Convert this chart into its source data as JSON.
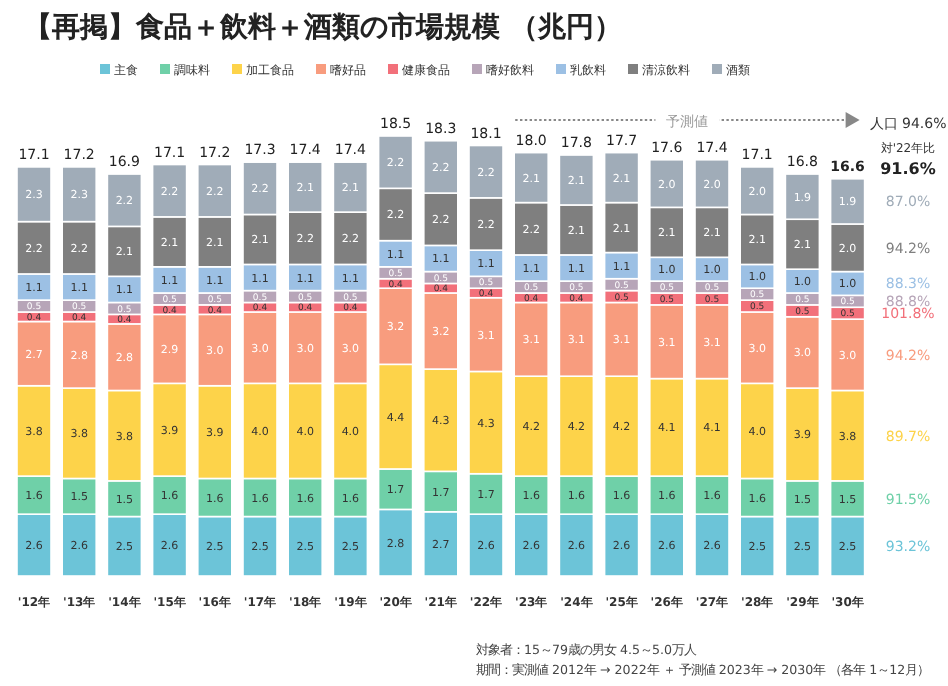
{
  "chart_data": {
    "type": "bar",
    "stacked": true,
    "title": "【再掲】食品＋飲料＋酒類の市場規模 （兆円）",
    "legend": "top",
    "categories": [
      "'12年",
      "'13年",
      "'14年",
      "'15年",
      "'16年",
      "'17年",
      "'18年",
      "'19年",
      "'20年",
      "'21年",
      "'22年",
      "'23年",
      "'24年",
      "'25年",
      "'26年",
      "'27年",
      "'28年",
      "'29年",
      "'30年"
    ],
    "series": [
      {
        "name": "主食",
        "color": "#6cc4d8",
        "values": [
          2.6,
          2.6,
          2.5,
          2.6,
          2.5,
          2.5,
          2.5,
          2.5,
          2.8,
          2.7,
          2.6,
          2.6,
          2.6,
          2.6,
          2.6,
          2.6,
          2.5,
          2.5,
          2.5
        ],
        "value_labels": [
          "2.6",
          "2.6",
          "2.5",
          "2.6",
          "2.5",
          "2.5",
          "2.5",
          "2.5",
          "2.8",
          "2.7",
          "2.6",
          "2.6",
          "2.6",
          "2.6",
          "2.6",
          "2.6",
          "2.5",
          "2.5",
          "2.5"
        ]
      },
      {
        "name": "調味料",
        "color": "#6fd0a8",
        "values": [
          1.6,
          1.5,
          1.5,
          1.6,
          1.6,
          1.6,
          1.6,
          1.6,
          1.7,
          1.7,
          1.7,
          1.6,
          1.6,
          1.6,
          1.6,
          1.6,
          1.6,
          1.5,
          1.5
        ],
        "value_labels": [
          "1.6",
          "1.5",
          "1.5",
          "1.6",
          "1.6",
          "1.6",
          "1.6",
          "1.6",
          "1.7",
          "1.7",
          "1.7",
          "1.6",
          "1.6",
          "1.6",
          "1.6",
          "1.6",
          "1.6",
          "1.5",
          "1.5"
        ]
      },
      {
        "name": "加工食品",
        "color": "#fdd34a",
        "values": [
          3.8,
          3.8,
          3.8,
          3.9,
          3.9,
          4.0,
          4.0,
          4.0,
          4.4,
          4.3,
          4.3,
          4.2,
          4.2,
          4.2,
          4.1,
          4.1,
          4.0,
          3.9,
          3.8
        ],
        "value_labels": [
          "3.8",
          "3.8",
          "3.8",
          "3.9",
          "3.9",
          "4.0",
          "4.0",
          "4.0",
          "4.4",
          "4.3",
          "4.3",
          "4.2",
          "4.2",
          "4.2",
          "4.1",
          "4.1",
          "4.0",
          "3.9",
          "3.8"
        ]
      },
      {
        "name": "嗜好品",
        "color": "#f89c7e",
        "values": [
          2.7,
          2.8,
          2.8,
          2.9,
          3.0,
          3.0,
          3.0,
          3.0,
          3.2,
          3.2,
          3.1,
          3.1,
          3.1,
          3.1,
          3.1,
          3.1,
          3.0,
          3.0,
          3.0
        ],
        "value_labels": [
          "2.7",
          "2.8",
          "2.8",
          "2.9",
          "3.0",
          "3.0",
          "3.0",
          "3.0",
          "3.2",
          "3.2",
          "3.1",
          "3.1",
          "3.1",
          "3.1",
          "3.1",
          "3.1",
          "3.0",
          "3.0",
          "3.0"
        ]
      },
      {
        "name": "健康食品",
        "color": "#f2707a",
        "values": [
          0.4,
          0.4,
          0.4,
          0.4,
          0.4,
          0.4,
          0.4,
          0.4,
          0.4,
          0.4,
          0.4,
          0.4,
          0.4,
          0.5,
          0.5,
          0.5,
          0.5,
          0.5,
          0.5
        ],
        "value_labels": [
          "0.4",
          "0.4",
          "0.4",
          "0.4",
          "0.4",
          "0.4",
          "0.4",
          "0.4",
          "0.4",
          "0.4",
          "0.4",
          "0.4",
          "0.4",
          "0.5",
          "0.5",
          "0.5",
          "0.5",
          "0.5",
          "0.5"
        ]
      },
      {
        "name": "嗜好飲料",
        "color": "#b7a5b8",
        "values": [
          0.5,
          0.5,
          0.5,
          0.5,
          0.5,
          0.5,
          0.5,
          0.5,
          0.5,
          0.5,
          0.5,
          0.5,
          0.5,
          0.5,
          0.5,
          0.5,
          0.5,
          0.5,
          0.5
        ],
        "value_labels": [
          "0.5",
          "0.5",
          "0.5",
          "0.5",
          "0.5",
          "0.5",
          "0.5",
          "0.5",
          "0.5",
          "0.5",
          "0.5",
          "0.5",
          "0.5",
          "0.5",
          "0.5",
          "0.5",
          "0.5",
          "0.5",
          "0.5"
        ]
      },
      {
        "name": "乳飲料",
        "color": "#9cc0e4",
        "values": [
          1.1,
          1.1,
          1.1,
          1.1,
          1.1,
          1.1,
          1.1,
          1.1,
          1.1,
          1.1,
          1.1,
          1.1,
          1.1,
          1.1,
          1.0,
          1.0,
          1.0,
          1.0,
          1.0
        ],
        "value_labels": [
          "1.1",
          "1.1",
          "1.1",
          "1.1",
          "1.1",
          "1.1",
          "1.1",
          "1.1",
          "1.1",
          "1.1",
          "1.1",
          "1.1",
          "1.1",
          "1.1",
          "1.0",
          "1.0",
          "1.0",
          "1.0",
          "1.0"
        ]
      },
      {
        "name": "清涼飲料",
        "color": "#7f7f7f",
        "values": [
          2.2,
          2.2,
          2.1,
          2.1,
          2.1,
          2.1,
          2.2,
          2.2,
          2.2,
          2.2,
          2.2,
          2.2,
          2.1,
          2.1,
          2.1,
          2.1,
          2.1,
          2.1,
          2.0
        ],
        "value_labels": [
          "2.2",
          "2.2",
          "2.1",
          "2.1",
          "2.1",
          "2.1",
          "2.2",
          "2.2",
          "2.2",
          "2.2",
          "2.2",
          "2.2",
          "2.1",
          "2.1",
          "2.1",
          "2.1",
          "2.1",
          "2.1",
          "2.0"
        ]
      },
      {
        "name": "酒類",
        "color": "#a0acb8",
        "values": [
          2.3,
          2.3,
          2.2,
          2.2,
          2.2,
          2.2,
          2.1,
          2.1,
          2.2,
          2.2,
          2.2,
          2.1,
          2.1,
          2.1,
          2.0,
          2.0,
          2.0,
          1.9,
          1.9
        ],
        "value_labels": [
          "2.3",
          "2.3",
          "2.2",
          "2.2",
          "2.2",
          "2.2",
          "2.1",
          "2.1",
          "2.2",
          "2.2",
          "2.2",
          "2.1",
          "2.1",
          "2.1",
          "2.0",
          "2.0",
          "2.0",
          "1.9",
          "1.9"
        ]
      }
    ],
    "totals": [
      "17.1",
      "17.2",
      "16.9",
      "17.1",
      "17.2",
      "17.3",
      "17.4",
      "17.4",
      "18.5",
      "18.3",
      "18.1",
      "18.0",
      "17.8",
      "17.7",
      "17.6",
      "17.4",
      "17.1",
      "16.8",
      "16.6"
    ],
    "annotations": [
      "予測値",
      "人口 94.6%",
      "対'22年比",
      "91.6%",
      "93.2%",
      "91.5%",
      "89.7%",
      "94.2%",
      "101.8%",
      "88.8%",
      "88.3%",
      "94.2%",
      "87.0%",
      "対象者：15～79歳の男女 4.5～5.0万人",
      "期間：実測値 2012年 → 2022年 ＋ 予測値 2023年 → 2030年 （各年 1～12月）"
    ]
  }
}
